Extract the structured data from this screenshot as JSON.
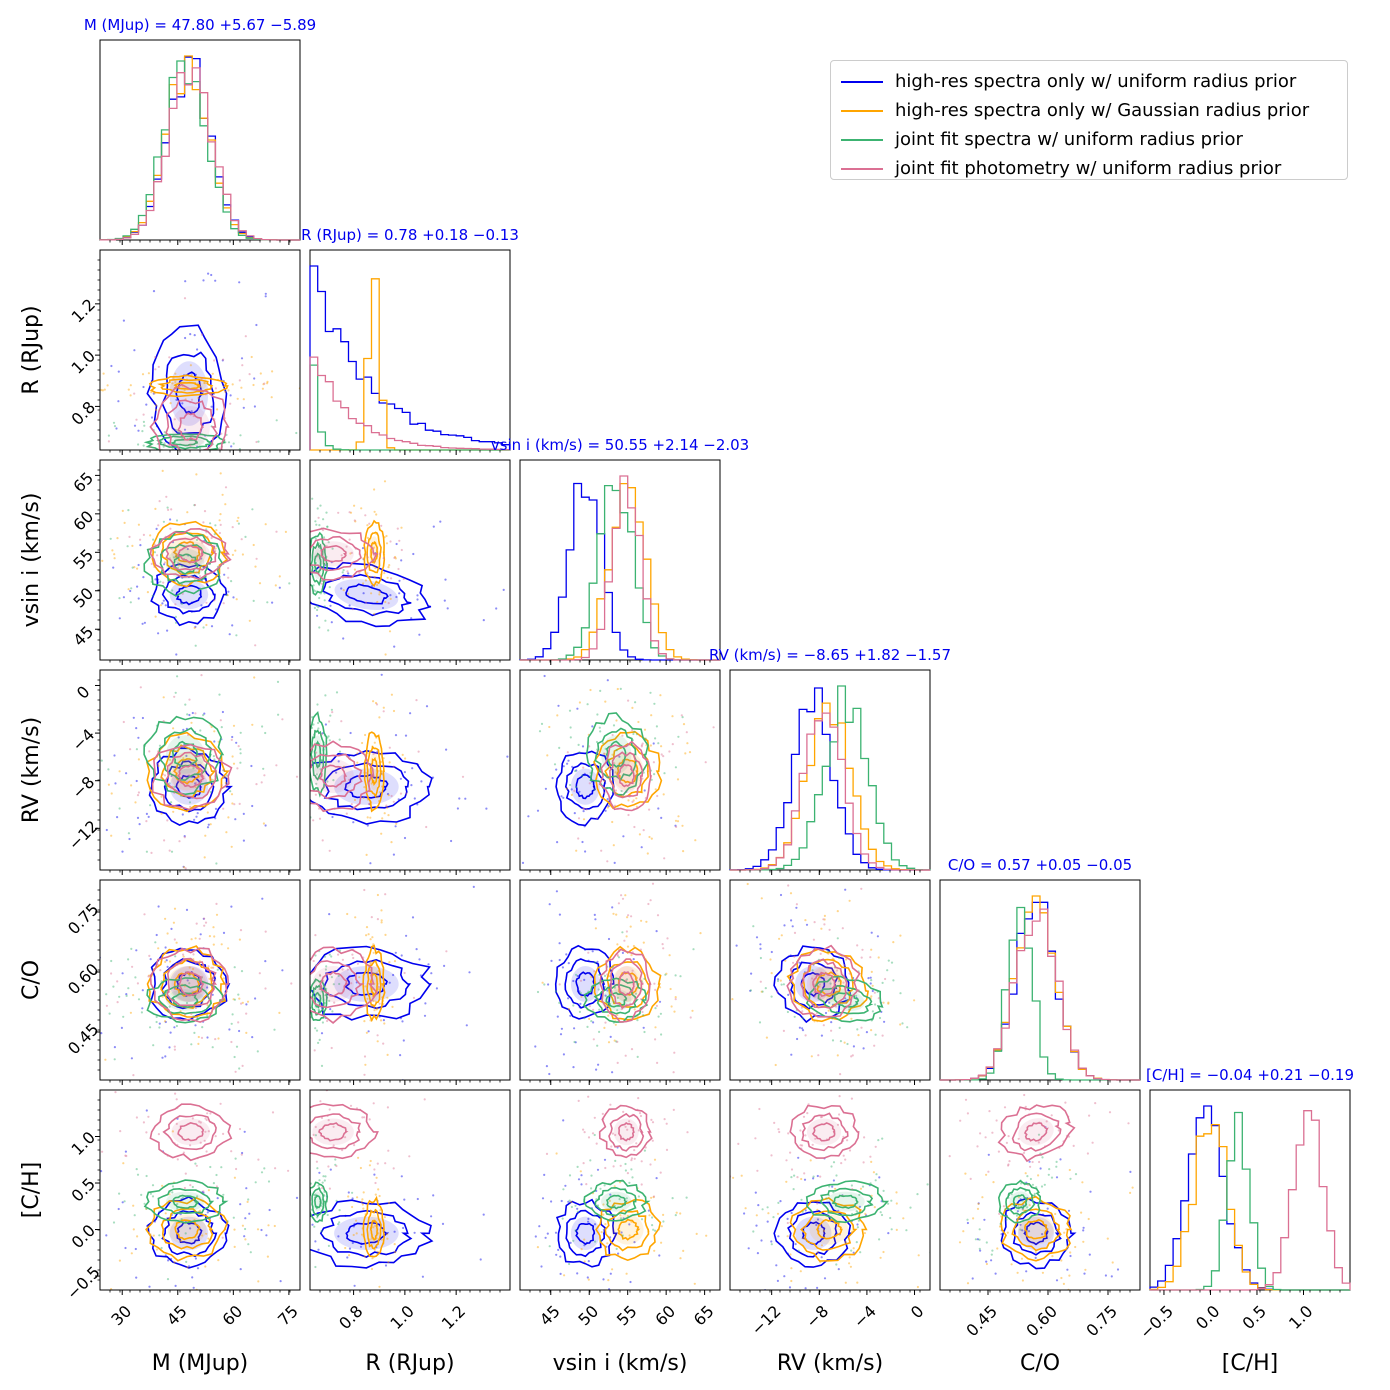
{
  "chart_data": {
    "type": "corner",
    "parameters": [
      {
        "key": "M",
        "xlabel": "M (MJup)",
        "ylabel": "M (MJup)",
        "range": [
          24,
          78
        ],
        "ticks": [
          30,
          45,
          60,
          75
        ],
        "tick_labels": [
          "30",
          "45",
          "60",
          "75"
        ],
        "title": "M (MJup) = 47.80 +5.67 −5.89"
      },
      {
        "key": "R",
        "xlabel": "R (RJup)",
        "ylabel": "R (RJup)",
        "range": [
          0.63,
          1.41
        ],
        "ticks": [
          0.8,
          1.0,
          1.2
        ],
        "tick_labels": [
          "0.8",
          "1.0",
          "1.2"
        ],
        "title": "R (RJup) = 0.78 +0.18 −0.13"
      },
      {
        "key": "vsini",
        "xlabel": "vsin i (km/s)",
        "ylabel": "vsin i (km/s)",
        "range": [
          41,
          67
        ],
        "ticks": [
          45,
          50,
          55,
          60,
          65
        ],
        "tick_labels": [
          "45",
          "50",
          "55",
          "60",
          "65"
        ],
        "title": "vsin i (km/s) = 50.55 +2.14 −2.03"
      },
      {
        "key": "RV",
        "xlabel": "RV (km/s)",
        "ylabel": "RV (km/s)",
        "range": [
          -15.5,
          1.3
        ],
        "ticks": [
          -12,
          -8,
          -4,
          0
        ],
        "tick_labels": [
          "−12",
          "−8",
          "−4",
          "0"
        ],
        "title": "RV (km/s) = −8.65 +1.82 −1.57"
      },
      {
        "key": "CO",
        "xlabel": "C/O",
        "ylabel": "C/O",
        "range": [
          0.33,
          0.83
        ],
        "ticks": [
          0.45,
          0.6,
          0.75
        ],
        "tick_labels": [
          "0.45",
          "0.60",
          "0.75"
        ],
        "title": "C/O = 0.57 +0.05 −0.05"
      },
      {
        "key": "CH",
        "xlabel": "[C/H]",
        "ylabel": "[C/H]",
        "range": [
          -0.65,
          1.5
        ],
        "ticks": [
          -0.5,
          0.0,
          0.5,
          1.0
        ],
        "tick_labels": [
          "−0.5",
          "0.0",
          "0.5",
          "1.0"
        ],
        "title": "[C/H] = −0.04 +0.21 −0.19"
      }
    ],
    "series": [
      {
        "name": "high-res spectra only w/ uniform radius prior",
        "color": "#0000ee",
        "mean": [
          48.0,
          0.85,
          49.5,
          -8.5,
          0.57,
          -0.04
        ],
        "std": [
          5.8,
          0.16,
          2.1,
          1.7,
          0.05,
          0.2
        ]
      },
      {
        "name": "high-res spectra only w/ Gaussian radius prior",
        "color": "#ffa500",
        "mean": [
          47.5,
          0.88,
          55.0,
          -7.2,
          0.57,
          0.0
        ],
        "std": [
          5.8,
          0.022,
          2.3,
          1.8,
          0.05,
          0.18
        ]
      },
      {
        "name": "joint fit spectra w/ uniform radius prior",
        "color": "#3cb371",
        "mean": [
          47.0,
          0.66,
          53.5,
          -5.8,
          0.53,
          0.3
        ],
        "std": [
          5.8,
          0.02,
          2.2,
          1.8,
          0.03,
          0.12
        ]
      },
      {
        "name": "joint fit photometry w/ uniform radius prior",
        "color": "#db7093",
        "mean": [
          48.5,
          0.72,
          54.8,
          -7.6,
          0.57,
          1.05
        ],
        "std": [
          5.8,
          0.09,
          1.8,
          1.6,
          0.05,
          0.16
        ]
      }
    ]
  },
  "legend_title": "",
  "axis_tex": {
    "M_sym": "M",
    "M_unit": "M",
    "M_sub": "Jup",
    "R_sym": "R",
    "R_unit": "R",
    "R_sub": "Jup",
    "v_sym": "v",
    "v_sin": "sin",
    "v_i": "i",
    "v_unit": "(km/s)"
  }
}
